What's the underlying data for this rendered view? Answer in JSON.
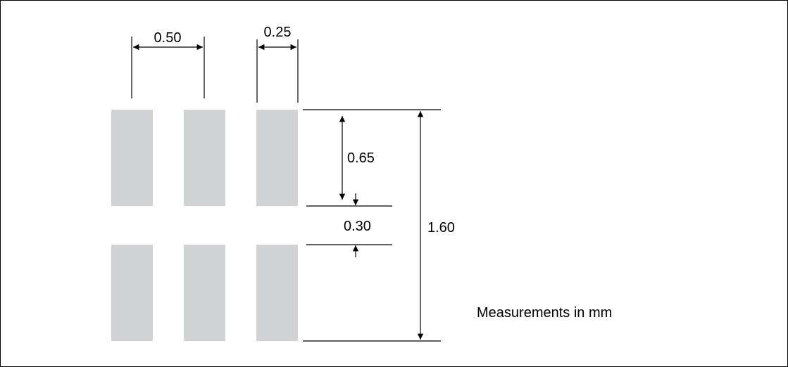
{
  "diagram": {
    "dimensions": {
      "pitch": "0.50",
      "pad_width": "0.25",
      "pad_length": "0.65",
      "gap": "0.30",
      "total_height": "1.60"
    },
    "note": "Measurements in mm",
    "colors": {
      "pad_fill": "#d1d2d4",
      "line": "#000000",
      "background": "#ffffff"
    }
  }
}
